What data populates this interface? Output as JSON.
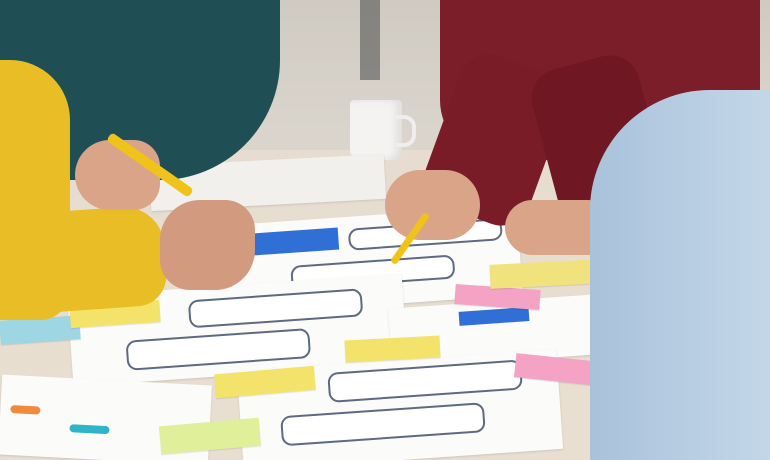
{
  "scene": {
    "description_colors": {
      "table": "#e8dfd1",
      "teal_sweater": "#1f4f55",
      "yellow_jacket": "#e8bd25",
      "maroon_sweater": "#7c1d2a",
      "blue_shirt": "#b9cfe3",
      "skin": "#d9a488",
      "sticky_yellow": "#f4e36a",
      "sticky_pink": "#f4a3c4",
      "sticky_blue": "#9fd6e4",
      "wireframe_blue": "#2f6fd6",
      "paper": "#fbfbfa"
    }
  }
}
